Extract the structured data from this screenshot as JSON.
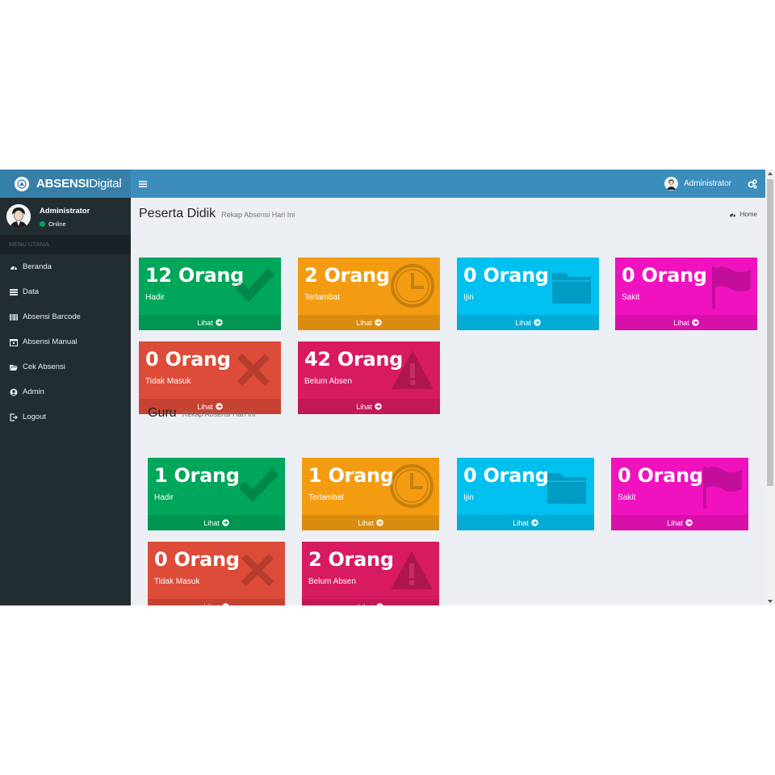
{
  "header": {
    "logo_bold": "ABSENSI",
    "logo_light": "Digital",
    "user_name": "Administrator"
  },
  "sidebar": {
    "user_name": "Administrator",
    "status": "Online",
    "menu_header": "MENU UTAMA",
    "items": [
      {
        "label": "Beranda",
        "icon": "dashboard-icon"
      },
      {
        "label": "Data",
        "icon": "list-icon"
      },
      {
        "label": "Absensi Barcode",
        "icon": "barcode-icon"
      },
      {
        "label": "Absensi Manual",
        "icon": "calendar-icon"
      },
      {
        "label": "Cek Absensi",
        "icon": "folder-open-icon"
      },
      {
        "label": "Admin",
        "icon": "user-circle-icon"
      },
      {
        "label": "Logout",
        "icon": "sign-out-icon"
      }
    ]
  },
  "breadcrumb": {
    "label": "Home"
  },
  "sections": [
    {
      "title": "Peserta Didik",
      "subtitle": "Rekap Absensi Hari Ini",
      "boxes": [
        {
          "value": "12 Orang",
          "label": "Hadir",
          "link": "Lihat",
          "color": "#00a65a",
          "icon": "check-icon"
        },
        {
          "value": "2 Orang",
          "label": "Terlambat",
          "link": "Lihat",
          "color": "#f39c12",
          "icon": "clock-icon"
        },
        {
          "value": "0 Orang",
          "label": "Ijin",
          "link": "Lihat",
          "color": "#00c0ef",
          "icon": "folder-icon"
        },
        {
          "value": "0 Orang",
          "label": "Sakit",
          "link": "Lihat",
          "color": "#f012be",
          "icon": "flag-icon"
        },
        {
          "value": "0 Orang",
          "label": "Tidak Masuk",
          "link": "Lihat",
          "color": "#dd4b39",
          "icon": "times-icon"
        },
        {
          "value": "42 Orang",
          "label": "Belum Absen",
          "link": "Lihat",
          "color": "#d81b60",
          "icon": "warning-icon"
        }
      ]
    },
    {
      "title": "Guru",
      "subtitle": "Rekap Absensi Hari Ini",
      "boxes": [
        {
          "value": "1 Orang",
          "label": "Hadir",
          "link": "Lihat",
          "color": "#00a65a",
          "icon": "check-icon"
        },
        {
          "value": "1 Orang",
          "label": "Terlambat",
          "link": "Lihat",
          "color": "#f39c12",
          "icon": "clock-icon"
        },
        {
          "value": "0 Orang",
          "label": "Ijin",
          "link": "Lihat",
          "color": "#00c0ef",
          "icon": "folder-icon"
        },
        {
          "value": "0 Orang",
          "label": "Sakit",
          "link": "Lihat",
          "color": "#f012be",
          "icon": "flag-icon"
        },
        {
          "value": "0 Orang",
          "label": "Tidak Masuk",
          "link": "Lihat",
          "color": "#dd4b39",
          "icon": "times-icon"
        },
        {
          "value": "2 Orang",
          "label": "Belum Absen",
          "link": "Lihat",
          "color": "#d81b60",
          "icon": "warning-icon"
        }
      ]
    }
  ]
}
